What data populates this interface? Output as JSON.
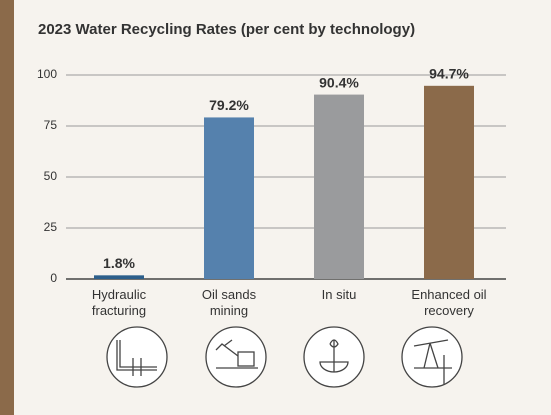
{
  "chart_data": {
    "type": "bar",
    "title": "2023 Water Recycling Rates (per cent by technology)",
    "categories": [
      "Hydraulic fracturing",
      "Oil sands mining",
      "In situ",
      "Enhanced oil recovery"
    ],
    "values": [
      1.8,
      79.2,
      90.4,
      94.7
    ],
    "value_labels": [
      "1.8%",
      "79.2%",
      "90.4%",
      "94.7%"
    ],
    "colors": [
      "#2d5f8b",
      "#5581ad",
      "#9a9b9d",
      "#8b6a4a"
    ],
    "ylim": [
      0,
      100
    ],
    "yticks": [
      0,
      25,
      50,
      75,
      100
    ],
    "grid": true
  }
}
